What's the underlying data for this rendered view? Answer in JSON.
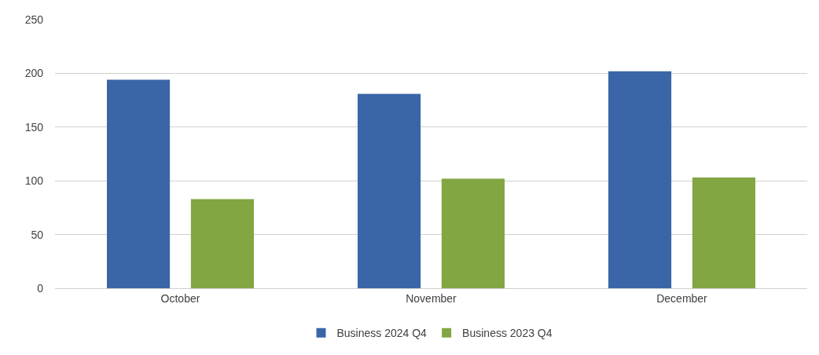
{
  "chart_data": {
    "type": "bar",
    "categories": [
      "October",
      "November",
      "December"
    ],
    "series": [
      {
        "name": "Business 2024 Q4",
        "color": "#3a66a8",
        "values": [
          194,
          181,
          202
        ]
      },
      {
        "name": "Business 2023 Q4",
        "color": "#82a642",
        "values": [
          83,
          102,
          103
        ]
      }
    ],
    "ylim": [
      0,
      250
    ],
    "yticks": [
      0,
      50,
      100,
      150,
      200,
      250
    ],
    "grid": "y",
    "legend": "bottom"
  }
}
